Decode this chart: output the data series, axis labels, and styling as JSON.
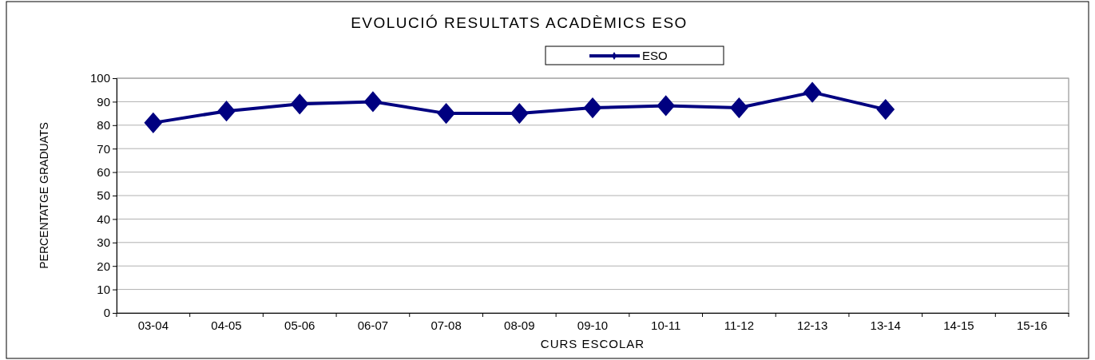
{
  "chart_data": {
    "type": "line",
    "title": "EVOLUCIÓ RESULTATS ACADÈMICS ESO",
    "xlabel": "CURS ESCOLAR",
    "ylabel": "PERCENTATGE GRADUATS",
    "categories": [
      "03-04",
      "04-05",
      "05-06",
      "06-07",
      "07-08",
      "08-09",
      "09-10",
      "10-11",
      "11-12",
      "12-13",
      "13-14",
      "14-15",
      "15-16"
    ],
    "series": [
      {
        "name": "ESO",
        "color": "#000080",
        "values": [
          81,
          86,
          89,
          90,
          85,
          85,
          87.4,
          88.3,
          87.4,
          94,
          86.7,
          null,
          null
        ]
      }
    ],
    "ylim": [
      0,
      100
    ],
    "yticks": [
      0,
      10,
      20,
      30,
      40,
      50,
      60,
      70,
      80,
      90,
      100
    ],
    "grid": "y",
    "legend": "top",
    "marker": "diamond",
    "line_style": "solid"
  }
}
